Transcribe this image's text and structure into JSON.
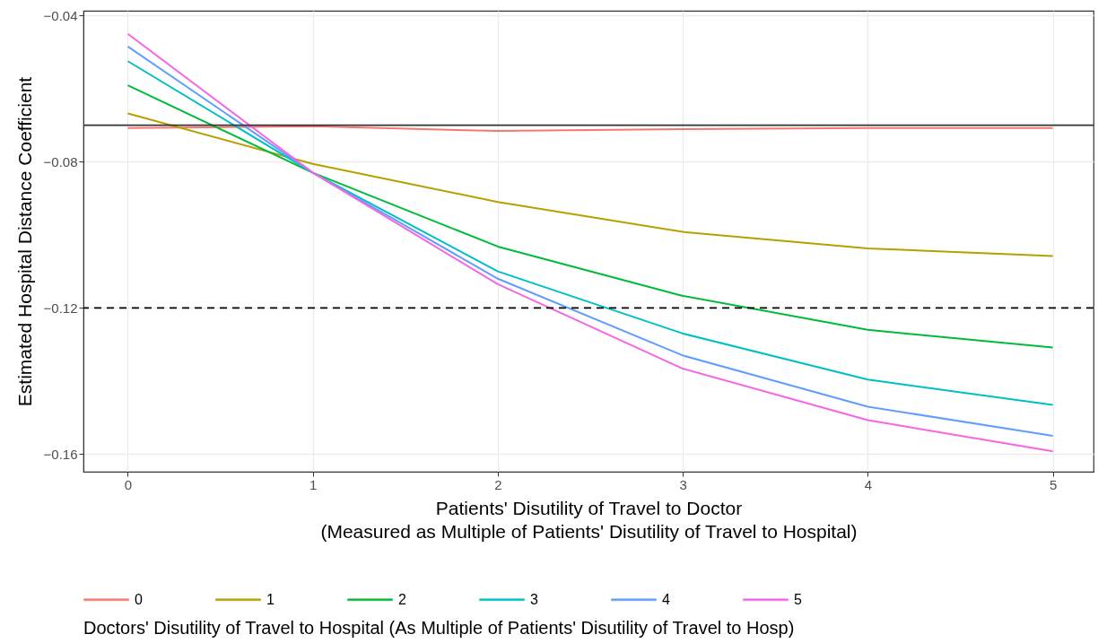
{
  "chart_data": {
    "type": "line",
    "xlabel": "Patients' Disutility of Travel to Doctor\n(Measured as Multiple of Patients' Disutility of Travel to Hospital)",
    "ylabel": "Estimated Hospital Distance Coefficient",
    "legend_title": "Doctors' Disutility of Travel to Hospital (As Multiple of Patients' Disutility of Travel to Hosp)",
    "x": [
      0,
      1,
      2,
      3,
      4,
      5
    ],
    "series": [
      {
        "name": "0",
        "color": "#f8766d",
        "values": [
          -0.0708,
          -0.0703,
          -0.0716,
          -0.0711,
          -0.0708,
          -0.0708
        ]
      },
      {
        "name": "1",
        "color": "#b79f00",
        "values": [
          -0.0668,
          -0.0806,
          -0.091,
          -0.0992,
          -0.1037,
          -0.1058
        ]
      },
      {
        "name": "2",
        "color": "#00ba38",
        "values": [
          -0.0591,
          -0.083,
          -0.1032,
          -0.1167,
          -0.126,
          -0.1308
        ]
      },
      {
        "name": "3",
        "color": "#00bfc4",
        "values": [
          -0.0525,
          -0.083,
          -0.11,
          -0.127,
          -0.1396,
          -0.1465
        ]
      },
      {
        "name": "4",
        "color": "#619cff",
        "values": [
          -0.0485,
          -0.083,
          -0.112,
          -0.133,
          -0.147,
          -0.155
        ]
      },
      {
        "name": "5",
        "color": "#f564e3",
        "values": [
          -0.045,
          -0.083,
          -0.1135,
          -0.1366,
          -0.1507,
          -0.1592
        ]
      }
    ],
    "xlim": [
      -0.24,
      5.22
    ],
    "ylim": [
      -0.1648,
      -0.0387
    ],
    "xticks": [
      0,
      1,
      2,
      3,
      4,
      5
    ],
    "yticks": [
      -0.16,
      -0.12,
      -0.08,
      -0.04
    ],
    "ref_lines": [
      {
        "axis": "y",
        "value": -0.07,
        "color": "#333333",
        "line_style": "solid"
      },
      {
        "axis": "y",
        "value": -0.12,
        "color": "#000000",
        "line_style": "dashed"
      }
    ],
    "grid": true,
    "legend": "bottom",
    "line_style": "solid"
  }
}
